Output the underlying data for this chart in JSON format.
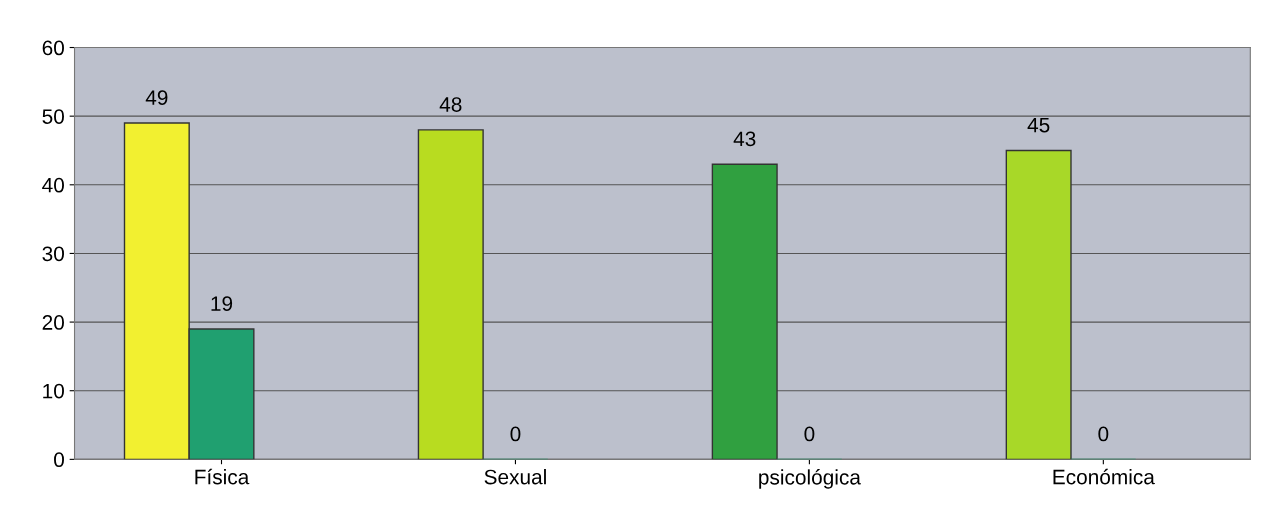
{
  "chart_data": {
    "type": "bar",
    "categories": [
      "Física",
      "Sexual",
      "psicológica",
      "Económica"
    ],
    "series": [
      {
        "colors": [
          "#f2f030",
          "#b8dc20",
          "#30a040",
          "#a8d828"
        ],
        "values": [
          49,
          48,
          43,
          45
        ]
      },
      {
        "color": "#20a070",
        "values": [
          19,
          0,
          0,
          0
        ]
      }
    ],
    "ylim": [
      0,
      60
    ],
    "yticks": [
      0,
      10,
      20,
      30,
      40,
      50,
      60
    ],
    "grid": "y",
    "data_labels": true,
    "legend": false
  }
}
